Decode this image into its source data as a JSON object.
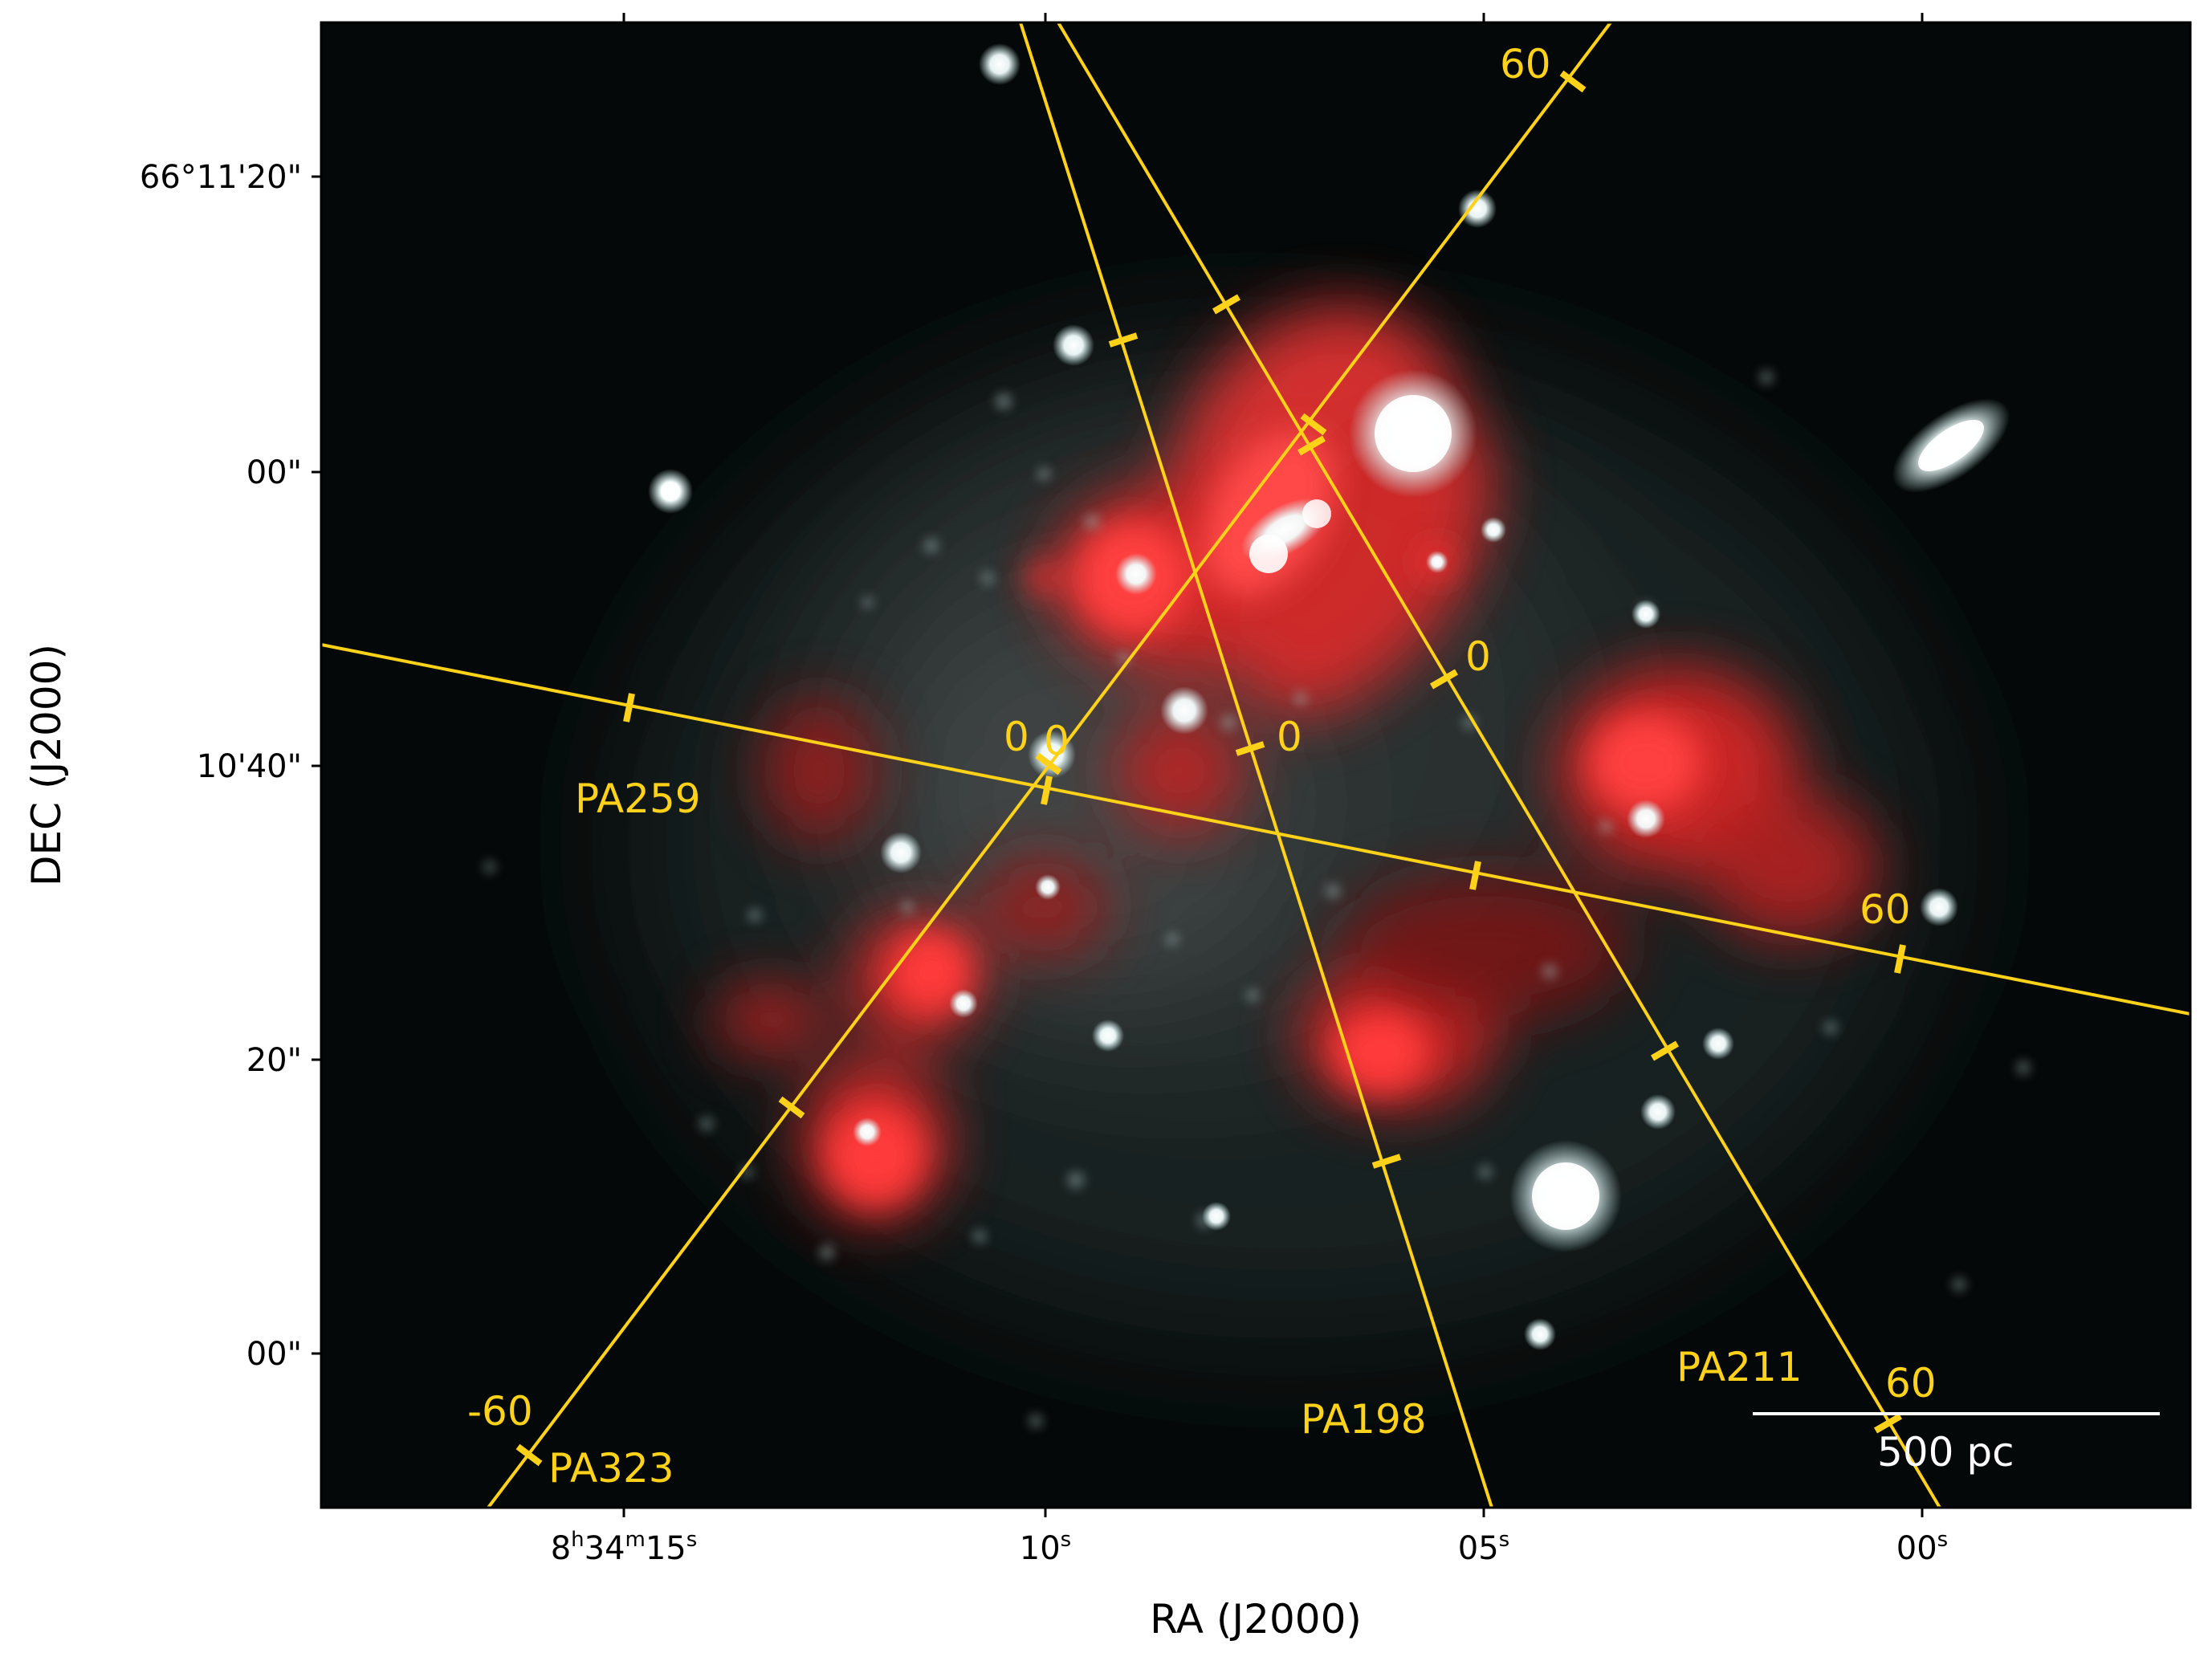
{
  "axes": {
    "xlabel": "RA (J2000)",
    "ylabel": "DEC (J2000)"
  },
  "ra_ticks": [
    {
      "h": "8",
      "m": "34",
      "s": "15"
    },
    {
      "s": "10"
    },
    {
      "s": "05"
    },
    {
      "s": "00"
    }
  ],
  "dec_ticks": [
    "66°11'20\"",
    "00\"",
    "10'40\"",
    "20\"",
    "00\""
  ],
  "slits": [
    {
      "name": "PA259",
      "end_label": "60"
    },
    {
      "name": "PA323",
      "start_label": "-60",
      "end_label": "60"
    },
    {
      "name": "PA198"
    },
    {
      "name": "PA211",
      "end_label": "60"
    }
  ],
  "center_labels": [
    "0",
    "0",
    "0",
    "0"
  ],
  "scale_bar": {
    "label": "500 pc"
  },
  "colors": {
    "slit": "#ffd21a",
    "halpha": "#ff3030",
    "stars": "#e6ffff",
    "background": "#050808"
  }
}
